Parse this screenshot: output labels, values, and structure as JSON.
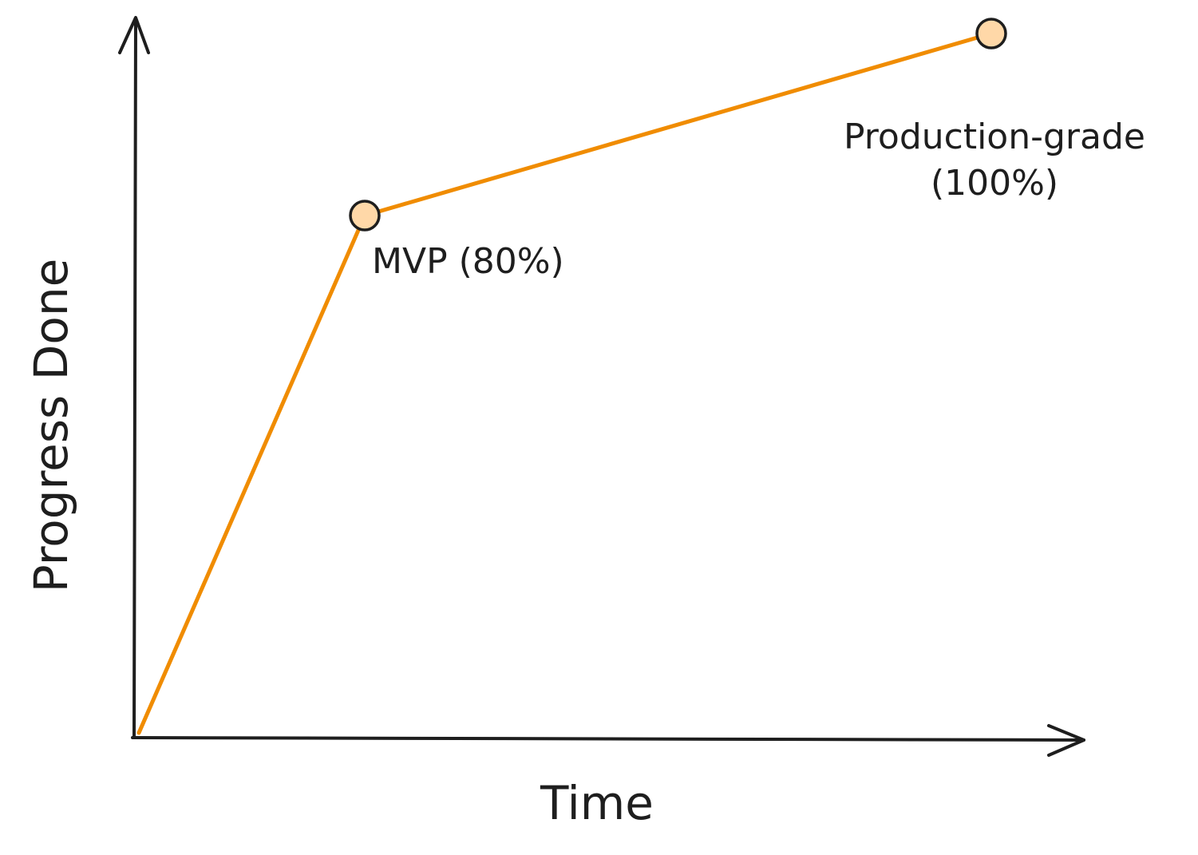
{
  "chart_data": {
    "type": "line",
    "xlabel": "Time",
    "ylabel": "Progress Done",
    "ylim": [
      0,
      100
    ],
    "grid": false,
    "series": [
      {
        "color": "#f08c00",
        "marker_fill": "#ffd8a8",
        "points": [
          {
            "x": 0,
            "y": 0,
            "label": ""
          },
          {
            "x": 1,
            "y": 80,
            "label": "MVP (80%)"
          },
          {
            "x": 4,
            "y": 100,
            "label": "Production-grade (100%)",
            "label_lines": [
              "Production-grade",
              "(100%)"
            ]
          }
        ]
      }
    ]
  }
}
